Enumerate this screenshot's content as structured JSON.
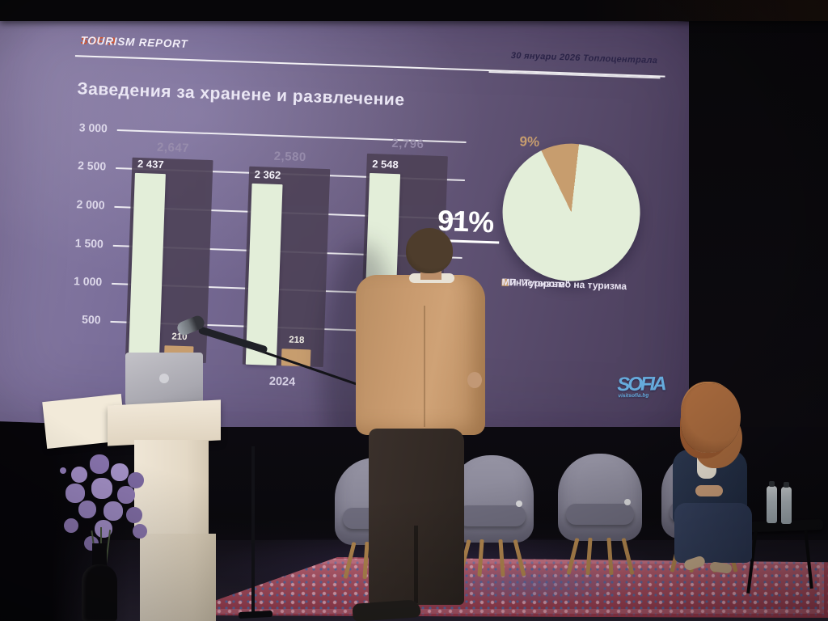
{
  "scene": "conference stage with projected Sofia tourism report slide",
  "slide": {
    "brand_sofia": "SOFIA",
    "brand_rest": " TOURISM REPORT",
    "date_venue": "30 януари 2026  Топлоцентрала",
    "title": "Заведения за хранене и развлечение",
    "logo_text": "SOFIA",
    "logo_sub": "visitsofia.bg"
  },
  "bar_chart": {
    "y_ticks": [
      "3 000",
      "2 500",
      "2 000",
      "1 500",
      "1 000",
      "500"
    ],
    "groups": [
      {
        "total_label": "2,647",
        "main_label": "2 437",
        "small_label": "210",
        "x_label": ""
      },
      {
        "total_label": "2,580",
        "main_label": "2 362",
        "small_label": "218",
        "x_label": "2024"
      },
      {
        "total_label": "2,796",
        "main_label": "2 548",
        "small_label": "",
        "x_label": ""
      }
    ],
    "legend": [
      {
        "label": "ОП \"Туризъм\""
      },
      {
        "label": "Министерство на туризма"
      }
    ]
  },
  "pie_chart": {
    "big_label": "91%",
    "small_label": "9%",
    "legend": [
      {
        "label": "ОП \"Туризъм\""
      },
      {
        "label": "Министерство на туризма"
      }
    ]
  },
  "colors": {
    "brand_orange": "#d0532f",
    "bar_main": "#e3eed9",
    "bar_small": "#c79d6e",
    "bar_total": "#4d4156",
    "total_label": "#9a8fae",
    "pie_big": "#e3eed9",
    "pie_small": "#c79d6e",
    "legend_dark": "#332e40",
    "logo_blue": "#66abdc"
  },
  "chart_data": [
    {
      "type": "bar",
      "title": "Заведения за хранене и развлечение",
      "categories": [
        "",
        "2024",
        ""
      ],
      "series": [
        {
          "name": "total",
          "values": [
            2647,
            2580,
            2796
          ]
        },
        {
          "name": "ОП \"Туризъм\"",
          "values": [
            2437,
            2362,
            2548
          ]
        },
        {
          "name": "Министерство на туризма",
          "values": [
            210,
            218,
            null
          ]
        }
      ],
      "ylim": [
        0,
        3000
      ],
      "yticks": [
        500,
        1000,
        1500,
        2000,
        2500,
        3000
      ],
      "grid": true,
      "legend_position": "bottom"
    },
    {
      "type": "pie",
      "labels": [
        "ОП \"Туризъм\"",
        "Министерство на туризма"
      ],
      "values": [
        91,
        9
      ],
      "legend_position": "bottom-right"
    }
  ]
}
